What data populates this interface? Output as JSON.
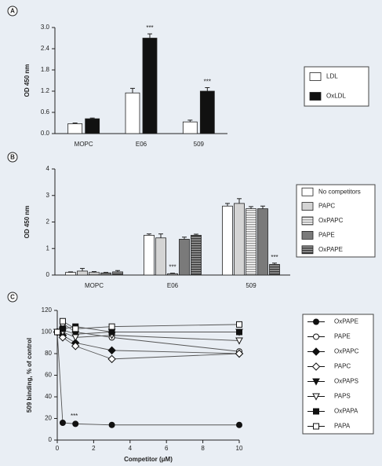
{
  "chart_data": [
    {
      "type": "bar",
      "panel_label": "A",
      "y_label": "OD 450 nm",
      "categories": [
        "MOPC",
        "E06",
        "509"
      ],
      "series": [
        {
          "name": "LDL",
          "color": "#ffffff",
          "values": [
            0.28,
            1.15,
            0.33
          ],
          "errors": [
            0.02,
            0.13,
            0.05
          ]
        },
        {
          "name": "OxLDL",
          "color": "#111111",
          "values": [
            0.42,
            2.7,
            1.2
          ],
          "errors": [
            0.02,
            0.12,
            0.1
          ]
        }
      ],
      "ylim": [
        0,
        3
      ],
      "yticks": [
        {
          "value": 0,
          "label": "0.0"
        },
        0.6,
        1.2,
        1.8,
        2.4,
        {
          "value": 3,
          "label": "3.0"
        }
      ],
      "annotations": [
        {
          "text": "***",
          "category": "E06",
          "series": "OxLDL"
        },
        {
          "text": "***",
          "category": "509",
          "series": "OxLDL"
        }
      ]
    },
    {
      "type": "bar",
      "panel_label": "B",
      "y_label": "OD 450 nm",
      "categories": [
        "MOPC",
        "E06",
        "509"
      ],
      "series": [
        {
          "name": "No competitors",
          "color": "#ffffff",
          "values": [
            0.1,
            1.5,
            2.6
          ],
          "errors": [
            0.02,
            0.05,
            0.1
          ]
        },
        {
          "name": "PAPC",
          "color": "#d4d4d4",
          "values": [
            0.15,
            1.4,
            2.7
          ],
          "errors": [
            0.1,
            0.15,
            0.18
          ]
        },
        {
          "name": "OxPAPC",
          "color": "#ffffff",
          "stripe_color": "#9a9a9a",
          "values": [
            0.1,
            0.05,
            2.5
          ],
          "errors": [
            0.03,
            0.02,
            0.08
          ]
        },
        {
          "name": "PAPE",
          "color": "#7a7a7a",
          "values": [
            0.08,
            1.35,
            2.5
          ],
          "errors": [
            0.02,
            0.08,
            0.1
          ]
        },
        {
          "name": "OxPAPE",
          "color": "#9a9a9a",
          "stripe_color": "#3a3a3a",
          "values": [
            0.12,
            1.5,
            0.4
          ],
          "errors": [
            0.05,
            0.04,
            0.05
          ]
        }
      ],
      "ylim": [
        0,
        4
      ],
      "yticks": [
        0,
        1,
        2,
        3,
        4
      ],
      "annotations": [
        {
          "text": "***",
          "category": "E06",
          "series": "OxPAPC"
        },
        {
          "text": "***",
          "category": "509",
          "series": "OxPAPE"
        }
      ]
    },
    {
      "type": "line",
      "panel_label": "C",
      "y_label": "509 binding, % of control",
      "x_label": "Competitor (μM)",
      "x": [
        0,
        0.3,
        1,
        3,
        10
      ],
      "series": [
        {
          "name": "OxPAPE",
          "color": "#111111",
          "marker": "circle",
          "filled": true,
          "values": [
            100,
            16,
            15,
            14,
            14
          ]
        },
        {
          "name": "PAPE",
          "color": "#111111",
          "marker": "circle",
          "filled": false,
          "values": [
            100,
            108,
            100,
            95,
            82
          ]
        },
        {
          "name": "OxPAPC",
          "color": "#111111",
          "marker": "diamond",
          "filled": true,
          "values": [
            100,
            97,
            90,
            83,
            80
          ]
        },
        {
          "name": "PAPC",
          "color": "#111111",
          "marker": "diamond",
          "filled": false,
          "values": [
            100,
            95,
            87,
            75,
            80
          ]
        },
        {
          "name": "OxPAPS",
          "color": "#111111",
          "marker": "triangle-down",
          "filled": true,
          "values": [
            100,
            102,
            98,
            100,
            100
          ]
        },
        {
          "name": "PAPS",
          "color": "#111111",
          "marker": "triangle-down",
          "filled": false,
          "values": [
            100,
            100,
            95,
            97,
            92
          ]
        },
        {
          "name": "OxPAPA",
          "color": "#111111",
          "marker": "square",
          "filled": true,
          "values": [
            100,
            103,
            105,
            100,
            100
          ]
        },
        {
          "name": "PAPA",
          "color": "#111111",
          "marker": "square",
          "filled": false,
          "values": [
            100,
            110,
            103,
            105,
            107
          ]
        }
      ],
      "xlim": [
        0,
        10
      ],
      "xticks": [
        0,
        2,
        4,
        6,
        8,
        10
      ],
      "ylim": [
        0,
        120
      ],
      "yticks": [
        0,
        20,
        40,
        60,
        80,
        100,
        120
      ],
      "annotations": [
        {
          "text": "***",
          "x": 0.3,
          "series": "OxPAPE"
        }
      ]
    }
  ]
}
